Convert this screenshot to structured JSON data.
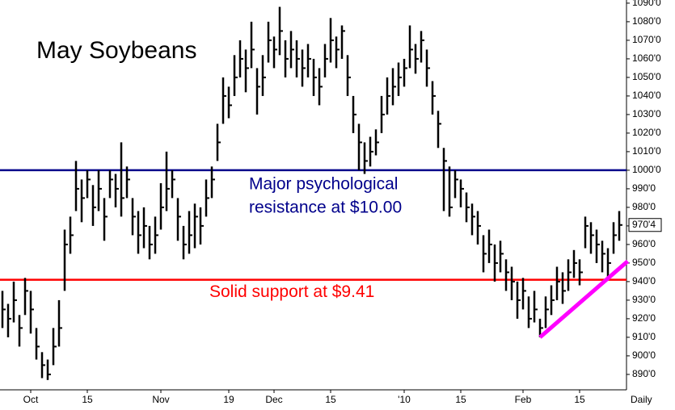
{
  "chart_data": {
    "type": "hlc",
    "title": "May Soybeans",
    "x_axis_label": "Daily",
    "color": "#000000",
    "ylim": [
      881.7,
      1091.7
    ],
    "yticks": [
      {
        "value": 890,
        "label": "890'0"
      },
      {
        "value": 900,
        "label": "900'0"
      },
      {
        "value": 910,
        "label": "910'0"
      },
      {
        "value": 920,
        "label": "920'0"
      },
      {
        "value": 930,
        "label": "930'0"
      },
      {
        "value": 940,
        "label": "940'0"
      },
      {
        "value": 950,
        "label": "950'0"
      },
      {
        "value": 960,
        "label": "960'0"
      },
      {
        "value": 970,
        "label": "970'0"
      },
      {
        "value": 980,
        "label": "980'0"
      },
      {
        "value": 990,
        "label": "990'0"
      },
      {
        "value": 1000,
        "label": "1000'0"
      },
      {
        "value": 1010,
        "label": "1010'0"
      },
      {
        "value": 1020,
        "label": "1020'0"
      },
      {
        "value": 1030,
        "label": "1030'0"
      },
      {
        "value": 1040,
        "label": "1040'0"
      },
      {
        "value": 1050,
        "label": "1050'0"
      },
      {
        "value": 1060,
        "label": "1060'0"
      },
      {
        "value": 1070,
        "label": "1070'0"
      },
      {
        "value": 1080,
        "label": "1080'0"
      },
      {
        "value": 1090,
        "label": "1090'0"
      }
    ],
    "xticks": [
      {
        "value": 5,
        "label": "Oct"
      },
      {
        "value": 15,
        "label": "15"
      },
      {
        "value": 28,
        "label": "Nov"
      },
      {
        "value": 40,
        "label": "19"
      },
      {
        "value": 48,
        "label": "Dec"
      },
      {
        "value": 58,
        "label": "15"
      },
      {
        "value": 71,
        "label": "'10"
      },
      {
        "value": 81,
        "label": "15"
      },
      {
        "value": 92,
        "label": "Feb"
      },
      {
        "value": 102,
        "label": "15"
      }
    ],
    "high": [
      935,
      928,
      940,
      922,
      942,
      935,
      915,
      902,
      898,
      915,
      930,
      968,
      975,
      1005,
      995,
      1000,
      992,
      1000,
      985,
      1000,
      998,
      1015,
      1002,
      985,
      978,
      980,
      970,
      975,
      993,
      1010,
      1000,
      985,
      970,
      978,
      982,
      980,
      995,
      1002,
      1025,
      1050,
      1045,
      1062,
      1070,
      1065,
      1080,
      1055,
      1062,
      1080,
      1072,
      1088,
      1070,
      1075,
      1070,
      1065,
      1068,
      1060,
      1055,
      1068,
      1082,
      1072,
      1078,
      1062,
      1040,
      1025,
      1015,
      1018,
      1022,
      1040,
      1050,
      1055,
      1058,
      1060,
      1078,
      1068,
      1075,
      1065,
      1048,
      1032,
      1012,
      1002,
      1000,
      995,
      988,
      982,
      978,
      965,
      968,
      960,
      962,
      952,
      948,
      940,
      942,
      932,
      935,
      920,
      932,
      938,
      948,
      945,
      952,
      957,
      952,
      975,
      972,
      968,
      962,
      958,
      972,
      978
    ],
    "low": [
      915,
      910,
      918,
      905,
      922,
      912,
      898,
      888,
      887,
      895,
      905,
      935,
      955,
      978,
      972,
      985,
      970,
      978,
      962,
      985,
      980,
      975,
      985,
      965,
      955,
      958,
      952,
      955,
      968,
      978,
      985,
      962,
      952,
      955,
      958,
      960,
      975,
      985,
      1005,
      1025,
      1028,
      1040,
      1050,
      1042,
      1055,
      1030,
      1040,
      1058,
      1055,
      1062,
      1050,
      1055,
      1050,
      1045,
      1050,
      1040,
      1035,
      1050,
      1058,
      1055,
      1060,
      1040,
      1020,
      1000,
      998,
      1002,
      1008,
      1020,
      1030,
      1035,
      1040,
      1045,
      1055,
      1052,
      1058,
      1045,
      1030,
      1012,
      978,
      975,
      985,
      980,
      972,
      965,
      960,
      945,
      950,
      940,
      945,
      935,
      930,
      920,
      925,
      915,
      918,
      910,
      915,
      922,
      930,
      928,
      935,
      942,
      938,
      958,
      955,
      950,
      945,
      942,
      955,
      962
    ],
    "close": [
      925,
      920,
      930,
      915,
      935,
      925,
      905,
      895,
      890,
      905,
      915,
      960,
      965,
      990,
      985,
      995,
      980,
      990,
      975,
      995,
      990,
      985,
      995,
      975,
      965,
      970,
      960,
      965,
      980,
      990,
      995,
      975,
      960,
      965,
      975,
      970,
      985,
      995,
      1015,
      1040,
      1035,
      1050,
      1060,
      1055,
      1065,
      1045,
      1050,
      1070,
      1065,
      1075,
      1060,
      1065,
      1060,
      1055,
      1060,
      1050,
      1045,
      1060,
      1070,
      1065,
      1075,
      1050,
      1030,
      1015,
      1005,
      1010,
      1015,
      1030,
      1040,
      1045,
      1050,
      1055,
      1065,
      1060,
      1070,
      1055,
      1040,
      1025,
      1005,
      980,
      995,
      990,
      980,
      975,
      970,
      955,
      960,
      950,
      955,
      945,
      940,
      930,
      935,
      920,
      925,
      915,
      925,
      930,
      940,
      935,
      945,
      950,
      945,
      970,
      965,
      960,
      955,
      950,
      965,
      970.5
    ],
    "last_price": {
      "value": 970.5,
      "label": "970'4"
    },
    "hlines": [
      {
        "value": 1000,
        "color": "#00008b",
        "label": [
          "Major psychological",
          "resistance at $10.00"
        ]
      },
      {
        "value": 941,
        "color": "#ff0000",
        "label": [
          "Solid support at $9.41"
        ]
      }
    ],
    "trendline": {
      "color": "#ff00ff",
      "x": [
        95,
        110.5
      ],
      "values": [
        910,
        951
      ]
    }
  }
}
